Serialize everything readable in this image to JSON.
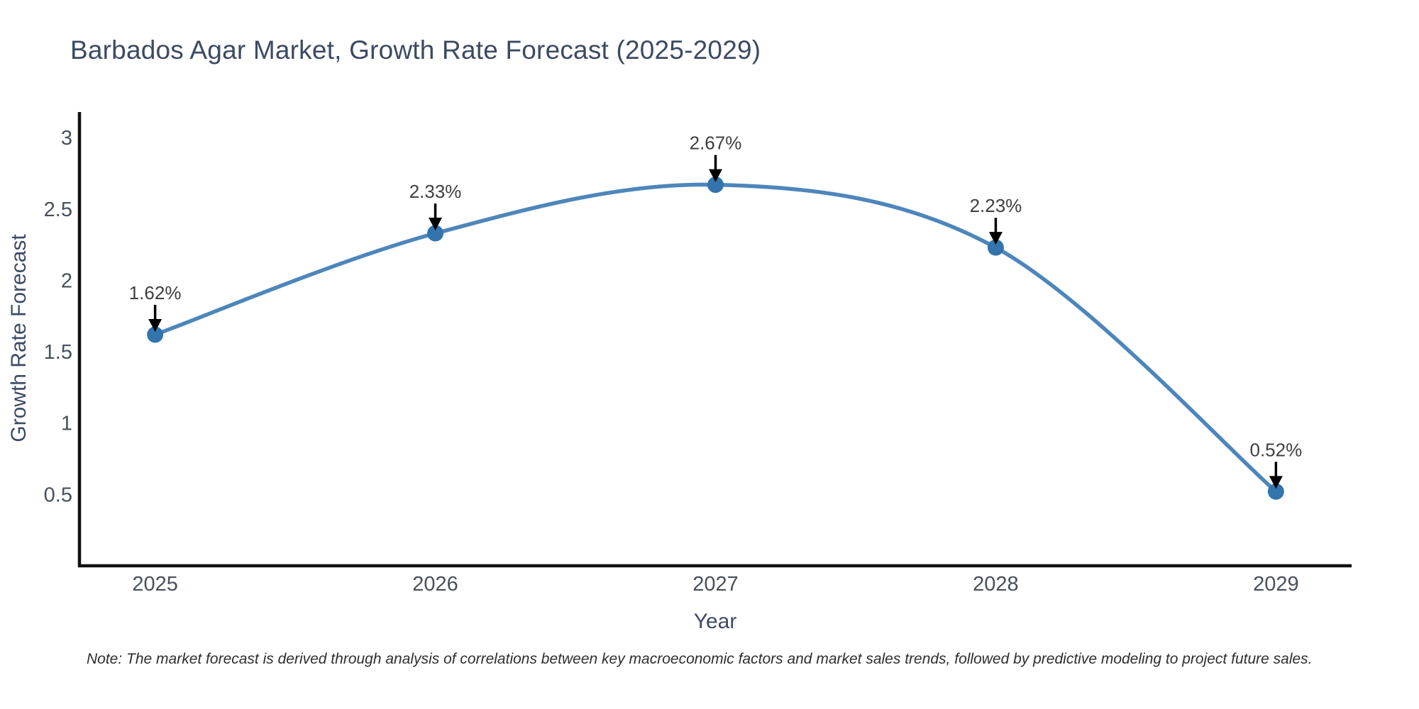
{
  "page": {
    "background": "#ffffff",
    "note": "Note: The market forecast is derived through analysis of correlations between key macroeconomic factors and market sales trends, followed by predictive modeling to project future sales."
  },
  "chart_data": {
    "type": "line",
    "title": "Barbados Agar Market, Growth Rate Forecast (2025-2029)",
    "xlabel": "Year",
    "ylabel": "Growth Rate Forecast",
    "x": [
      2025,
      2026,
      2027,
      2028,
      2029
    ],
    "series": [
      {
        "name": "Growth Rate Forecast",
        "values": [
          1.62,
          2.33,
          2.67,
          2.23,
          0.52
        ]
      }
    ],
    "point_labels": [
      "1.62%",
      "2.33%",
      "2.67%",
      "2.23%",
      "0.52%"
    ],
    "xticks": [
      2025,
      2026,
      2027,
      2028,
      2029
    ],
    "yticks": [
      0.5,
      1,
      1.5,
      2,
      2.5,
      3
    ],
    "xlim": [
      2024.73,
      2029.27
    ],
    "ylim": [
      0,
      3.17
    ],
    "grid": false,
    "legend": "none",
    "line_shape": "spline",
    "annotation_style": "percentage label with downward black arrow above each data point",
    "colors": {
      "line": "#4e86bb",
      "marker": "#3474ad",
      "axis": "#111111",
      "tick_label": "#47505c",
      "axis_title": "#3d4a63",
      "title": "#3c4a63",
      "annotation_text": "#3f3f3f",
      "annotation_arrow": "#000000",
      "note": "#2e2e2e",
      "background": "#ffffff"
    }
  }
}
